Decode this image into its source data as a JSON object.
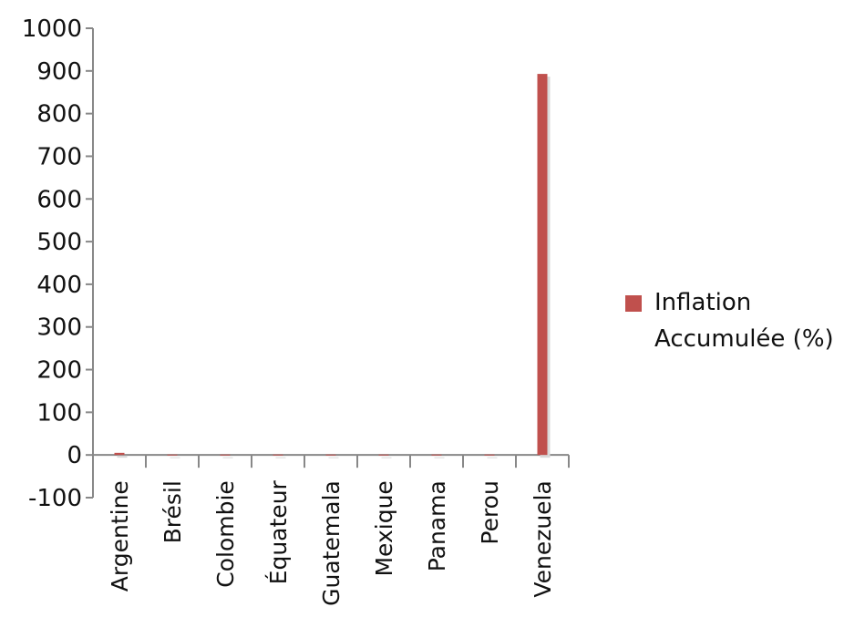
{
  "chart_data": {
    "type": "bar",
    "categories": [
      "Argentine",
      "Brésil",
      "Colombie",
      "Équateur",
      "Guatemala",
      "Mexique",
      "Panama",
      "Perou",
      "Venezuela"
    ],
    "series": [
      {
        "name": "Inflation Accumulée (%)",
        "color": "#c0504d",
        "values": [
          5,
          1,
          1,
          1,
          1,
          1,
          1,
          1,
          893
        ]
      }
    ],
    "ylim": [
      -100,
      1000
    ],
    "yticks": [
      "-100",
      "0",
      "100",
      "200",
      "300",
      "400",
      "500",
      "600",
      "700",
      "800",
      "900",
      "1000"
    ],
    "grid": false,
    "legend": "right"
  }
}
